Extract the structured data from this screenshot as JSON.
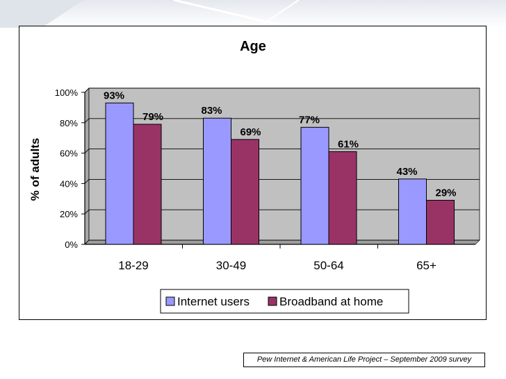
{
  "chart_data": {
    "type": "bar",
    "title": "Age",
    "xlabel": "",
    "ylabel": "% of adults",
    "ylim": [
      0,
      100
    ],
    "yticks": [
      "0%",
      "20%",
      "40%",
      "60%",
      "80%",
      "100%"
    ],
    "ytick_values": [
      0,
      20,
      40,
      60,
      80,
      100
    ],
    "categories": [
      "18-29",
      "30-49",
      "50-64",
      "65+"
    ],
    "series": [
      {
        "name": "Internet users",
        "values": [
          93,
          83,
          77,
          43
        ],
        "labels": [
          "93%",
          "83%",
          "77%",
          "43%"
        ],
        "color": "#9999ff"
      },
      {
        "name": "Broadband at home",
        "values": [
          79,
          69,
          61,
          29
        ],
        "labels": [
          "79%",
          "69%",
          "61%",
          "29%"
        ],
        "color": "#993366"
      }
    ],
    "grid": true,
    "plot_background": "#c0c0c0",
    "legend_position": "bottom"
  },
  "source": "Pew Internet & American Life Project – September 2009 survey"
}
